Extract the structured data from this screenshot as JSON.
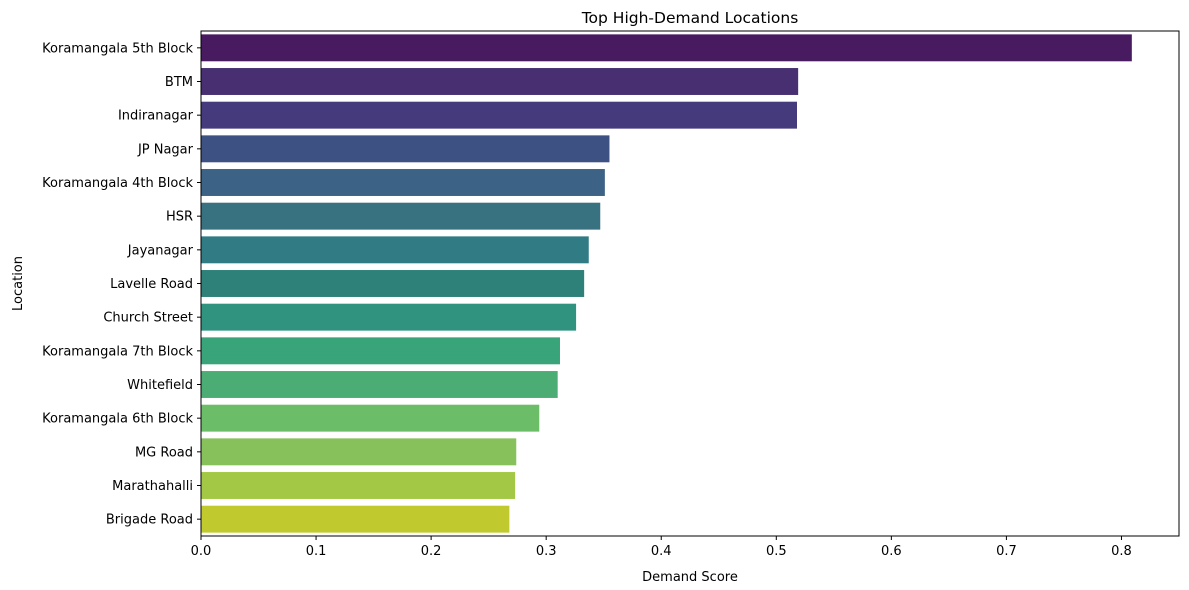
{
  "chart_data": {
    "type": "bar",
    "orientation": "horizontal",
    "title": "Top High-Demand Locations",
    "xlabel": "Demand Score",
    "ylabel": "Location",
    "xlim": [
      0,
      0.85
    ],
    "xticks": [
      "0.0",
      "0.1",
      "0.2",
      "0.3",
      "0.4",
      "0.5",
      "0.6",
      "0.7",
      "0.8"
    ],
    "grid": false,
    "legend": "none",
    "categories": [
      "Koramangala 5th Block",
      "BTM",
      "Indiranagar",
      "JP Nagar",
      "Koramangala 4th Block",
      "HSR",
      "Jayanagar",
      "Lavelle Road",
      "Church Street",
      "Koramangala 7th Block",
      "Whitefield",
      "Koramangala 6th Block",
      "MG Road",
      "Marathahalli",
      "Brigade Road"
    ],
    "values": [
      0.809,
      0.519,
      0.518,
      0.355,
      0.351,
      0.347,
      0.337,
      0.333,
      0.326,
      0.312,
      0.31,
      0.294,
      0.274,
      0.273,
      0.268
    ],
    "colors": [
      "#481b61",
      "#472f72",
      "#453b7c",
      "#3e5183",
      "#3c6285",
      "#38717f",
      "#317b84",
      "#2e8179",
      "#2f937f",
      "#39a37a",
      "#4cad74",
      "#6cbd68",
      "#86c15b",
      "#a3c845",
      "#c0ca2e"
    ]
  }
}
